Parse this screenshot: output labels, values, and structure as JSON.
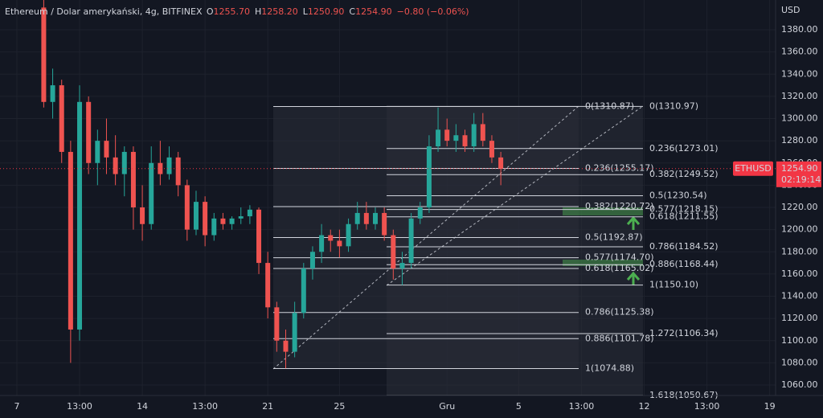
{
  "header": {
    "symbol": "Ethereum / Dolar amerykański, 4g, BITFINEX",
    "ohlc": [
      {
        "key": "O",
        "value": "1255.70"
      },
      {
        "key": "H",
        "value": "1258.20"
      },
      {
        "key": "L",
        "value": "1250.90"
      },
      {
        "key": "C",
        "value": "1254.90"
      }
    ],
    "change": "−0.80 (−0.06%)"
  },
  "chart_data": {
    "type": "candlestick",
    "y_unit": "USD",
    "x": [
      1.5,
      2.0,
      2.5,
      3.0,
      3.5,
      4.0,
      4.5,
      5.0,
      5.5,
      6.0,
      6.5,
      7.0,
      7.5,
      8.0,
      8.5,
      9.0,
      9.5,
      10.0,
      10.5,
      11.0,
      11.5,
      12.0,
      12.5,
      13.0,
      13.5,
      14.0,
      14.5,
      15.0,
      15.5,
      16.0,
      16.5,
      17.0,
      17.5,
      18.0,
      18.5,
      19.0,
      19.5,
      20.0,
      20.5,
      21.0,
      21.5,
      22.0,
      22.5,
      23.0,
      23.5,
      24.0,
      24.5,
      25.0,
      25.5,
      26.0,
      26.5,
      27.0
    ],
    "open": [
      1400,
      1315,
      1330,
      1270,
      1110,
      1315,
      1260,
      1280,
      1265,
      1250,
      1270,
      1220,
      1205,
      1260,
      1250,
      1265,
      1240,
      1200,
      1225,
      1195,
      1210,
      1205,
      1210,
      1212,
      1218,
      1170,
      1130,
      1100,
      1090,
      1125,
      1165,
      1180,
      1195,
      1190,
      1185,
      1205,
      1215,
      1205,
      1215,
      1195,
      1165,
      1170,
      1210,
      1220,
      1275,
      1290,
      1280,
      1285,
      1275,
      1295,
      1280,
      1265
    ],
    "high": [
      1410,
      1345,
      1335,
      1280,
      1330,
      1320,
      1290,
      1300,
      1285,
      1275,
      1275,
      1240,
      1275,
      1280,
      1275,
      1270,
      1245,
      1235,
      1230,
      1215,
      1215,
      1212,
      1220,
      1222,
      1220,
      1180,
      1135,
      1110,
      1135,
      1170,
      1185,
      1205,
      1200,
      1200,
      1210,
      1225,
      1225,
      1220,
      1220,
      1200,
      1180,
      1215,
      1225,
      1285,
      1310,
      1300,
      1295,
      1290,
      1305,
      1305,
      1285,
      1270
    ],
    "low": [
      1310,
      1300,
      1260,
      1080,
      1100,
      1250,
      1240,
      1250,
      1240,
      1230,
      1200,
      1190,
      1200,
      1240,
      1245,
      1230,
      1190,
      1195,
      1185,
      1190,
      1200,
      1200,
      1205,
      1205,
      1160,
      1120,
      1090,
      1075,
      1085,
      1120,
      1155,
      1170,
      1180,
      1175,
      1180,
      1200,
      1200,
      1200,
      1190,
      1155,
      1150,
      1165,
      1205,
      1215,
      1270,
      1275,
      1270,
      1270,
      1270,
      1275,
      1260,
      1240
    ],
    "close": [
      1315,
      1330,
      1270,
      1110,
      1315,
      1260,
      1280,
      1265,
      1250,
      1270,
      1220,
      1205,
      1260,
      1250,
      1265,
      1240,
      1200,
      1225,
      1195,
      1210,
      1205,
      1210,
      1212,
      1218,
      1170,
      1130,
      1100,
      1090,
      1125,
      1165,
      1180,
      1195,
      1190,
      1185,
      1205,
      1215,
      1205,
      1215,
      1195,
      1165,
      1170,
      1210,
      1220,
      1275,
      1290,
      1280,
      1285,
      1275,
      1295,
      1280,
      1265,
      1255
    ],
    "up_color": "#26a69a",
    "down_color": "#ef5350",
    "xlim": [
      -0.94,
      42.33
    ],
    "ylim": [
      1050.6,
      1406.8
    ],
    "xticks": [
      {
        "value": 0,
        "label": "7"
      },
      {
        "value": 3.5,
        "label": "13:00"
      },
      {
        "value": 7,
        "label": "14"
      },
      {
        "value": 10.5,
        "label": "13:00"
      },
      {
        "value": 14,
        "label": "21"
      },
      {
        "value": 18,
        "label": "25"
      },
      {
        "value": 24,
        "label": "Gru"
      },
      {
        "value": 28,
        "label": "5"
      },
      {
        "value": 31.5,
        "label": "13:00"
      },
      {
        "value": 35,
        "label": "12"
      },
      {
        "value": 38.5,
        "label": "13:00"
      },
      {
        "value": 42,
        "label": "19"
      }
    ],
    "yticks": [
      {
        "value": 1380,
        "label": "1380.00"
      },
      {
        "value": 1360,
        "label": "1360.00"
      },
      {
        "value": 1340,
        "label": "1340.00"
      },
      {
        "value": 1320,
        "label": "1320.00"
      },
      {
        "value": 1300,
        "label": "1300.00"
      },
      {
        "value": 1280,
        "label": "1280.00"
      },
      {
        "value": 1260,
        "label": "1260.00"
      },
      {
        "value": 1240,
        "label": "1240.00"
      },
      {
        "value": 1220,
        "label": "1220.00"
      },
      {
        "value": 1200,
        "label": "1200.00"
      },
      {
        "value": 1180,
        "label": "1180.00"
      },
      {
        "value": 1160,
        "label": "1160.00"
      },
      {
        "value": 1140,
        "label": "1140.00"
      },
      {
        "value": 1120,
        "label": "1120.00"
      },
      {
        "value": 1100,
        "label": "1100.00"
      },
      {
        "value": 1080,
        "label": "1080.00"
      },
      {
        "value": 1060,
        "label": "1060.00"
      }
    ],
    "grid": true,
    "last_price": {
      "value": 1254.9,
      "label": "1254.90",
      "countdown": "02:19:14",
      "symbol": "ETHUSD",
      "color": "#f23645"
    },
    "fib_sets": [
      {
        "levels": [
          {
            "value": 1310.87,
            "label": "0(1310.87)"
          },
          {
            "value": 1255.17,
            "label": "0.236(1255.17)"
          },
          {
            "value": 1220.72,
            "label": "0.382(1220.72)"
          },
          {
            "value": 1192.87,
            "label": "0.5(1192.87)"
          },
          {
            "value": 1174.7,
            "label": "0.577(1174.70)"
          },
          {
            "value": 1165.02,
            "label": "0.618(1165.02)"
          },
          {
            "value": 1125.38,
            "label": "0.786(1125.38)"
          },
          {
            "value": 1101.78,
            "label": "0.886(1101.78)"
          },
          {
            "value": 1074.88,
            "label": "1(1074.88)"
          }
        ]
      },
      {
        "levels": [
          {
            "value": 1310.97,
            "label": "0(1310.97)"
          },
          {
            "value": 1273.01,
            "label": "0.236(1273.01)"
          },
          {
            "value": 1249.52,
            "label": "0.382(1249.52)"
          },
          {
            "value": 1230.54,
            "label": "0.5(1230.54)"
          },
          {
            "value": 1218.15,
            "label": "0.577(1218.15)"
          },
          {
            "value": 1211.55,
            "label": "0.618(1211.55)"
          },
          {
            "value": 1184.52,
            "label": "0.786(1184.52)"
          },
          {
            "value": 1168.44,
            "label": "0.886(1168.44)"
          },
          {
            "value": 1150.1,
            "label": "1(1150.10)"
          },
          {
            "value": 1106.34,
            "label": "1.272(1106.34)"
          },
          {
            "value": 1050.67,
            "label": "1.618(1050.67)"
          }
        ]
      }
    ]
  }
}
